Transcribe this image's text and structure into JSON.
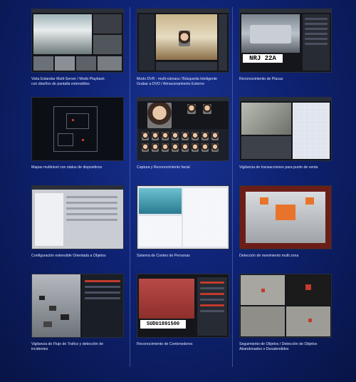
{
  "tiles": [
    {
      "caption": "Vista Estandar Multi-Server / Modo Playback\ncon diseños de pantalla extensibles"
    },
    {
      "caption": "Modo DVR - multi-cámara / Búsqueda Inteligente\nGrabar a DVD / Almacenamiento Externo"
    },
    {
      "caption": "Reconocimiento de Placas",
      "plate_text": "NRJ 22A"
    },
    {
      "caption": "Mapas multinivel con status de dispositivos"
    },
    {
      "caption": "Captura y Reconocimiento facial"
    },
    {
      "caption": "Vigilancia de transacciones para punto de venta"
    },
    {
      "caption": "Configuración extensible Orientada a Objetos"
    },
    {
      "caption": "Sistema de Conteo de Personas"
    },
    {
      "caption": "Detección de movimiento multi zona"
    },
    {
      "caption": "Vigilancia de Flujo de Trafico y detección de\nincidentes"
    },
    {
      "caption": "Reconocimiento de Contenedores",
      "container_text": "SUDU1891500"
    },
    {
      "caption": "Seguimiento de Objetos / Detección de Objetos\nAbandonados o Desatendidos"
    }
  ]
}
